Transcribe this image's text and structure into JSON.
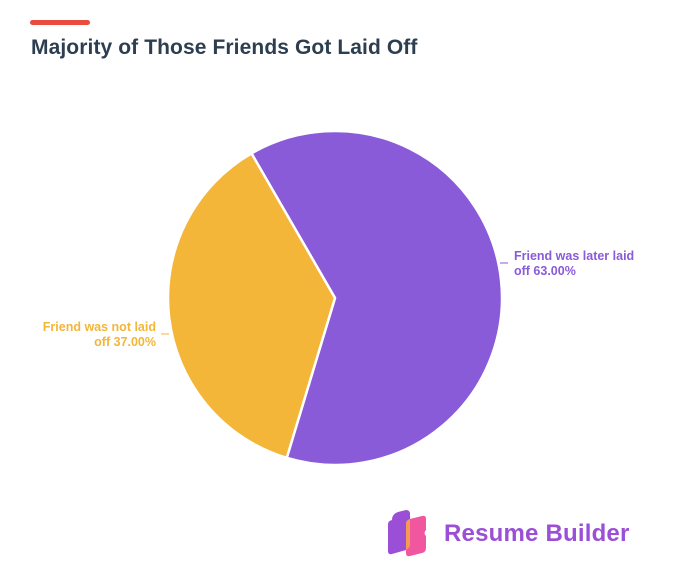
{
  "header": {
    "title": "Majority of Those Friends Got Laid Off",
    "accent_color": "#e94b3c"
  },
  "chart_data": {
    "type": "pie",
    "title": "Majority of Those Friends Got Laid Off",
    "categories": [
      "Friend was later laid off",
      "Friend was not laid off"
    ],
    "values": [
      63.0,
      37.0
    ],
    "colors": [
      "#8a5bd8",
      "#f3b638"
    ],
    "labels": [
      {
        "line1": "Friend was later laid",
        "line2": "off 63.00%",
        "color": "#8a5bd8",
        "position": "right"
      },
      {
        "line1": "Friend was not laid",
        "line2": "off 37.00%",
        "color": "#f3b638",
        "position": "left"
      }
    ],
    "legend": "none (direct labels)"
  },
  "brand": {
    "name": "Resume Builder",
    "logo_icon": "resume-builder-logo",
    "color": "#9b4fd6"
  }
}
